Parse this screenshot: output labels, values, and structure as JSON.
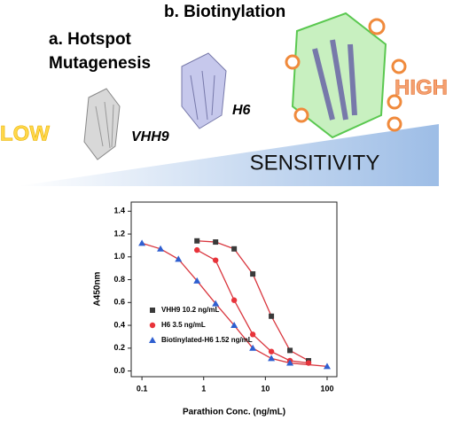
{
  "figure": {
    "step_b": "b. Biotinylation",
    "step_a_line1": "a. Hotspot",
    "step_a_line2": "Mutagenesis",
    "protein_1": "VHH9",
    "protein_2": "H6",
    "low": "LOW",
    "high": "HIGH",
    "sensitivity": "SENSITIVITY"
  },
  "chart_data": {
    "type": "line",
    "x_label": "Parathion Conc. (ng/mL)",
    "y_label": "A450nm",
    "xscale": "log",
    "xlim": [
      0.067,
      144
    ],
    "ylim": [
      -0.05,
      1.48
    ],
    "xticks": [
      0.1,
      1,
      10,
      100
    ],
    "yticks": [
      {
        "value": 0,
        "label": "0.0"
      },
      0.2,
      0.4,
      0.6,
      0.8,
      {
        "value": 1,
        "label": "1.0"
      },
      1.2,
      1.4
    ],
    "curve_color": "#d9363e",
    "legend": "lower left",
    "series": [
      {
        "name": "VHH9  10.2 ng/mL",
        "color": "#3a3a3a",
        "marker": "square",
        "x": [
          0.78,
          1.56,
          3.12,
          6.25,
          12.5,
          25,
          50
        ],
        "values": [
          1.14,
          1.13,
          1.07,
          0.85,
          0.48,
          0.18,
          0.09
        ]
      },
      {
        "name": "H6  3.5 ng/mL",
        "color": "#e8333a",
        "marker": "circle",
        "x": [
          0.78,
          1.56,
          3.12,
          6.25,
          12.5,
          25,
          50
        ],
        "values": [
          1.06,
          0.97,
          0.62,
          0.32,
          0.17,
          0.09,
          0.07
        ]
      },
      {
        "name": "Biotinylated-H6  1.52 ng/mL",
        "color": "#2f5fd0",
        "marker": "triangle",
        "x": [
          0.1,
          0.2,
          0.39,
          0.78,
          1.56,
          3.12,
          6.25,
          12.5,
          25,
          100
        ],
        "values": [
          1.12,
          1.07,
          0.98,
          0.79,
          0.59,
          0.4,
          0.2,
          0.11,
          0.07,
          0.04
        ]
      }
    ]
  }
}
